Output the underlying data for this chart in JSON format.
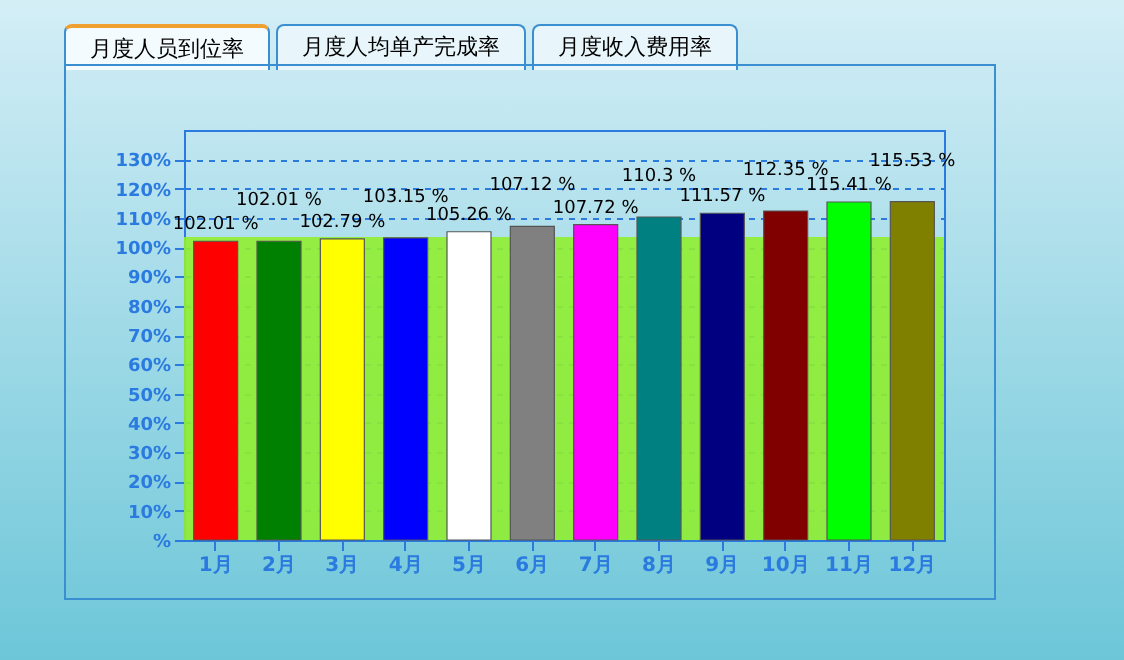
{
  "chart_data": {
    "type": "bar",
    "annotations": [
      "月度人员到位率",
      "月度人均单产完成率",
      "月度收入费用率"
    ],
    "categories": [
      "1月",
      "2月",
      "3月",
      "4月",
      "5月",
      "6月",
      "7月",
      "8月",
      "9月",
      "10月",
      "11月",
      "12月"
    ],
    "values": [
      102.01,
      102.01,
      102.79,
      103.15,
      105.26,
      107.12,
      107.72,
      110.3,
      111.57,
      112.35,
      115.41,
      115.53
    ],
    "value_labels": [
      "102.01 %",
      "102.01 %",
      "102.79 %",
      "103.15 %",
      "105.26 %",
      "107.12 %",
      "107.72 %",
      "110.3 %",
      "111.57 %",
      "112.35 %",
      "115.41 %",
      "115.53 %"
    ],
    "colors": [
      "#ff0000",
      "#008000",
      "#ffff00",
      "#0000ff",
      "#ffffff",
      "#808080",
      "#ff00ff",
      "#008080",
      "#000080",
      "#800000",
      "#00ff00",
      "#808000"
    ],
    "ylim": [
      0,
      140
    ],
    "yticks": [
      {
        "value": 0,
        "label": "%"
      },
      {
        "value": 10,
        "label": "10%"
      },
      {
        "value": 20,
        "label": "20%"
      },
      {
        "value": 30,
        "label": "30%"
      },
      {
        "value": 40,
        "label": "40%"
      },
      {
        "value": 50,
        "label": "50%"
      },
      {
        "value": 60,
        "label": "60%"
      },
      {
        "value": 70,
        "label": "70%"
      },
      {
        "value": 80,
        "label": "80%"
      },
      {
        "value": 90,
        "label": "90%"
      },
      {
        "value": 100,
        "label": "100%"
      },
      {
        "value": 110,
        "label": "110%"
      },
      {
        "value": 120,
        "label": "120%"
      },
      {
        "value": 130,
        "label": "130%"
      }
    ],
    "bands": [
      {
        "axis": "y",
        "from": 0,
        "to": 103.5,
        "color": "#90ee30"
      }
    ],
    "grid": "y"
  }
}
